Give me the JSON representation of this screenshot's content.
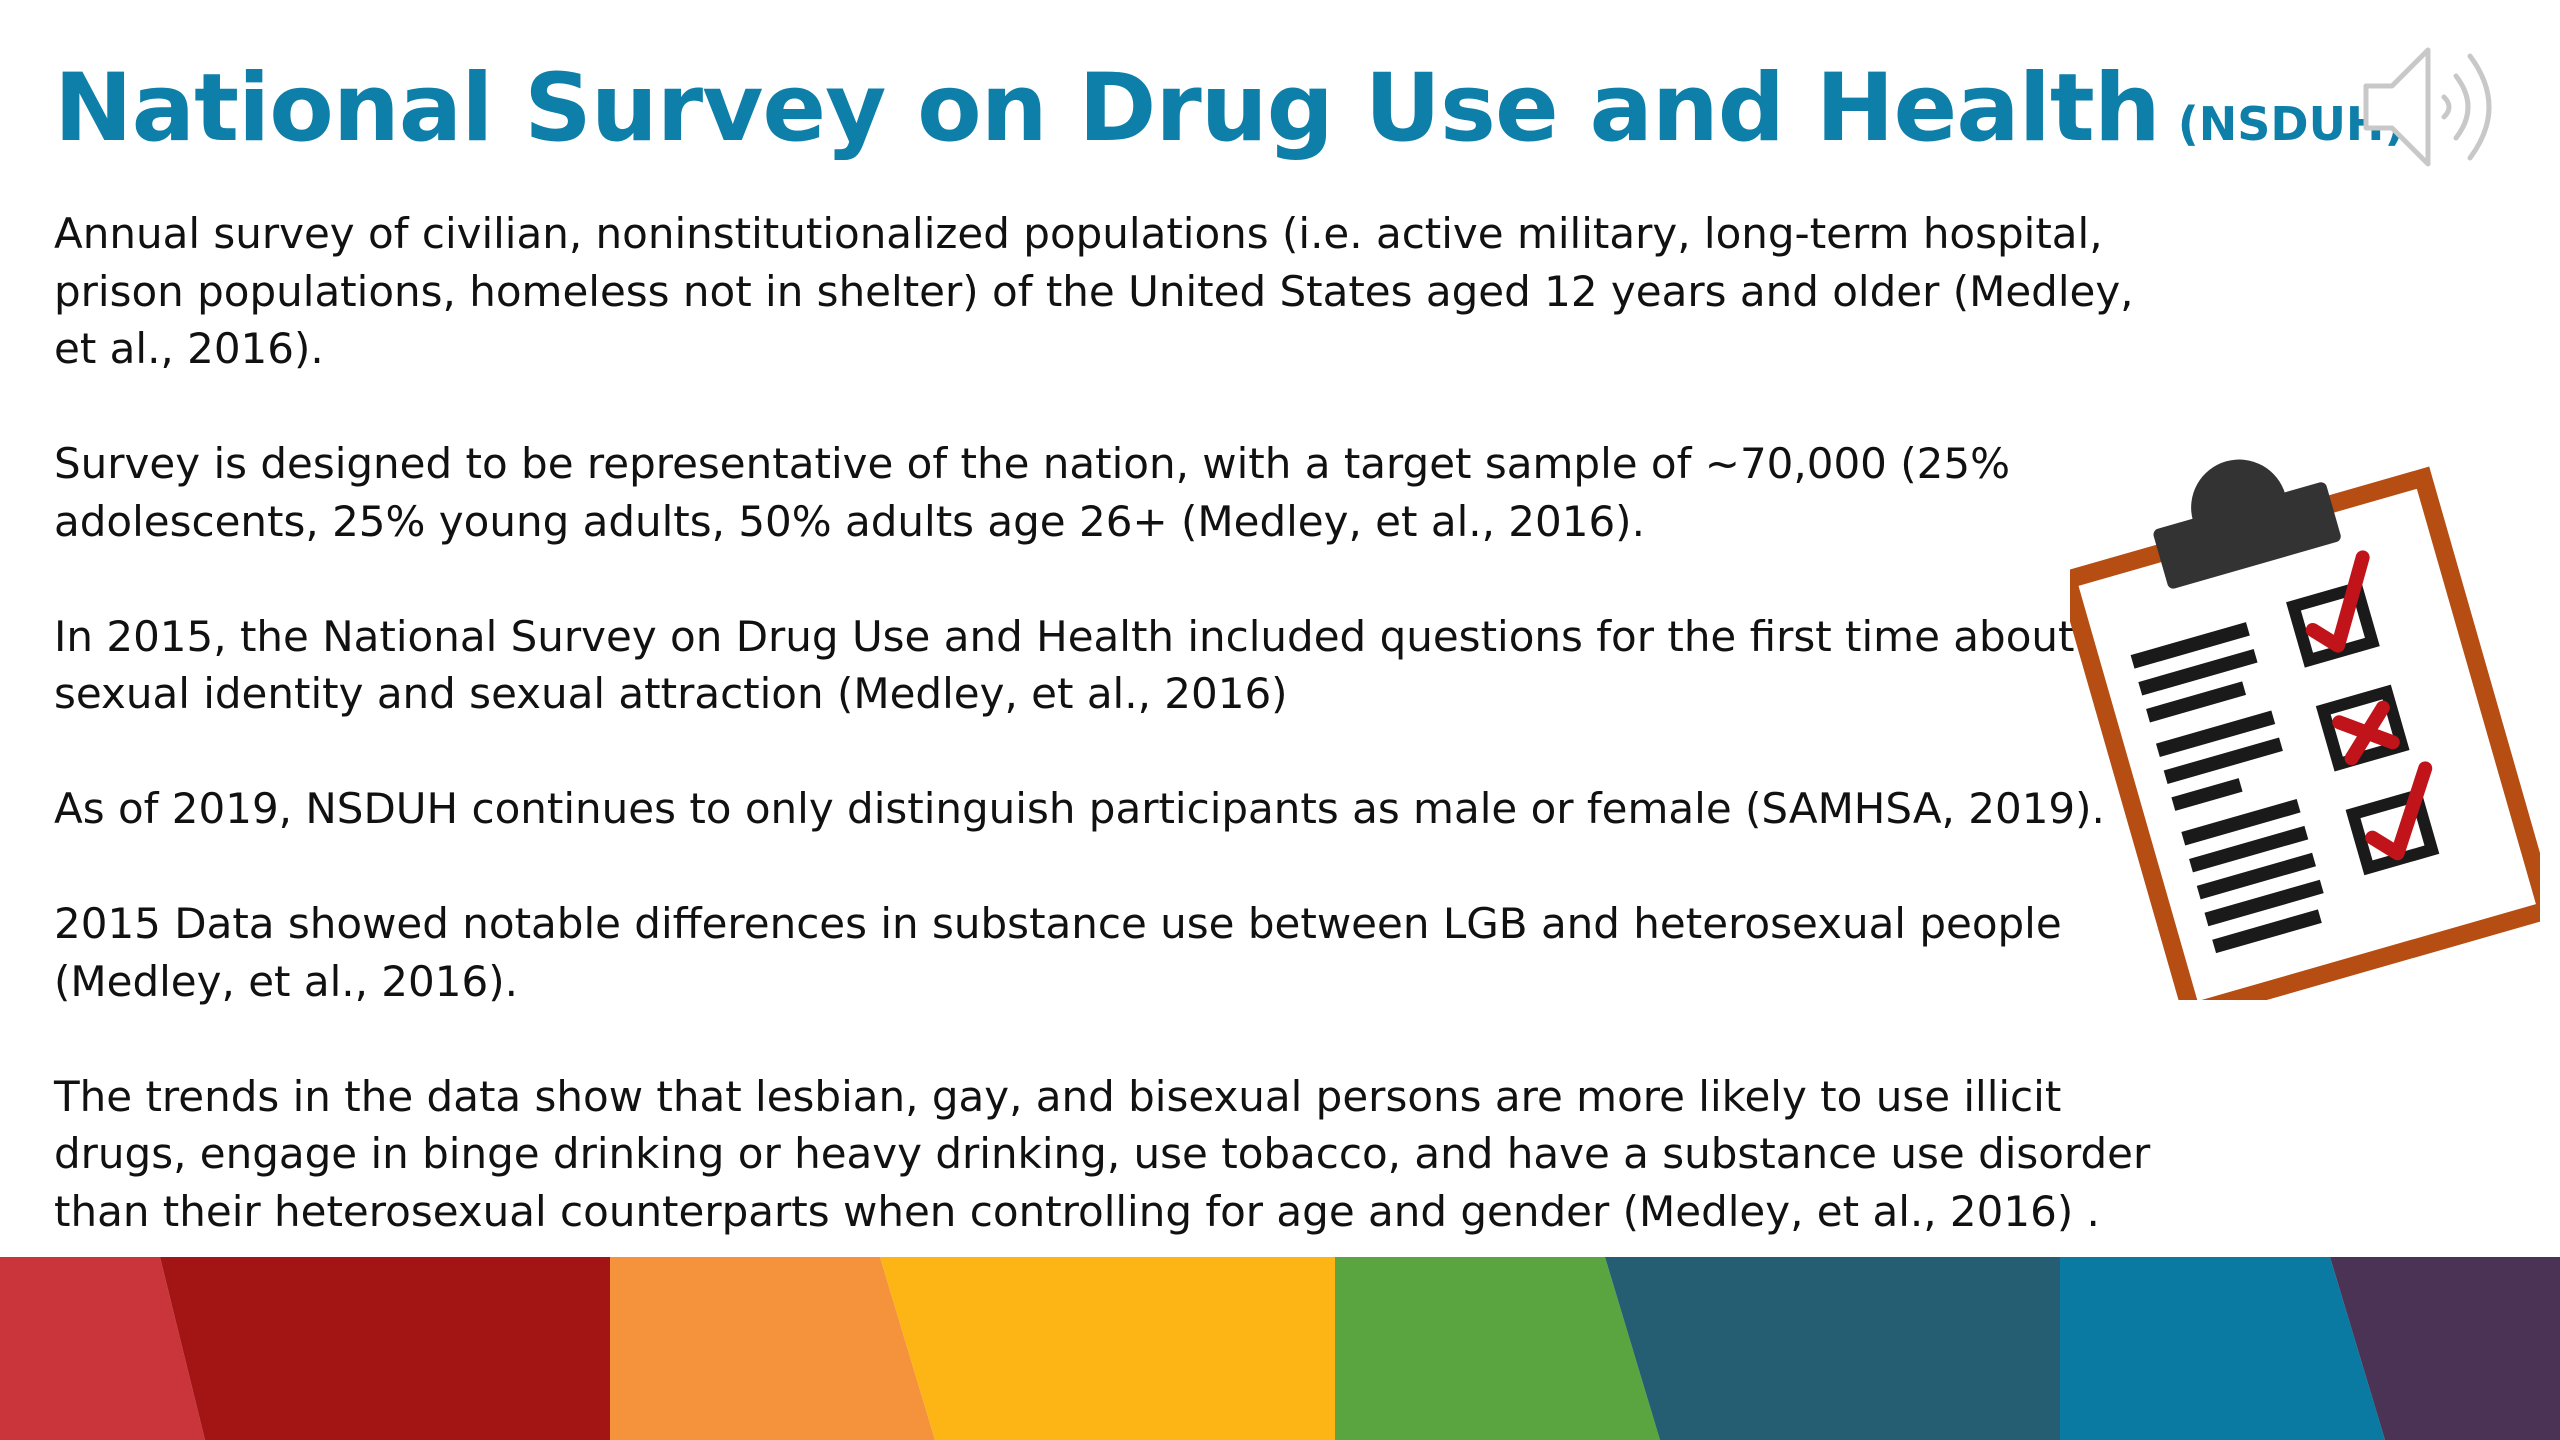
{
  "slide": {
    "title": "National Survey on Drug Use and Health",
    "title_suffix": "(NSDUH)",
    "paragraphs": [
      "Annual survey of civilian, noninstitutionalized populations (i.e. active military, long-term hospital, prison populations, homeless not in shelter) of the United States aged 12 years and older (Medley, et al., 2016).",
      "Survey is designed to be representative of the nation, with a target sample of ~70,000 (25% adolescents, 25% young adults, 50% adults age 26+ (Medley, et al., 2016).",
      "In 2015, the National Survey on Drug Use and Health included questions for the first time about sexual identity and sexual attraction (Medley, et al., 2016)",
      "As of 2019, NSDUH continues to only distinguish participants as male or female (SAMHSA, 2019).",
      "2015 Data showed notable differences in substance use between LGB and heterosexual people (Medley, et al., 2016).",
      "The trends in the data show that lesbian, gay, and bisexual persons are more likely to use illicit drugs, engage in binge drinking or heavy drinking, use tobacco, and have a substance use disorder than their heterosexual counterparts when controlling for age and gender (Medley, et al., 2016) ."
    ]
  },
  "icons": {
    "audio": "speaker-icon",
    "illustration": "clipboard-checklist-icon"
  },
  "colors": {
    "title": "#0e7fa8",
    "text": "#111111",
    "clipboard_border": "#b64d12",
    "check_red": "#c0141a",
    "banner": [
      "#c9353a",
      "#a31515",
      "#f5923c",
      "#fdb515",
      "#5aa53f",
      "#255d73",
      "#0a7aa3",
      "#4a3355"
    ]
  }
}
